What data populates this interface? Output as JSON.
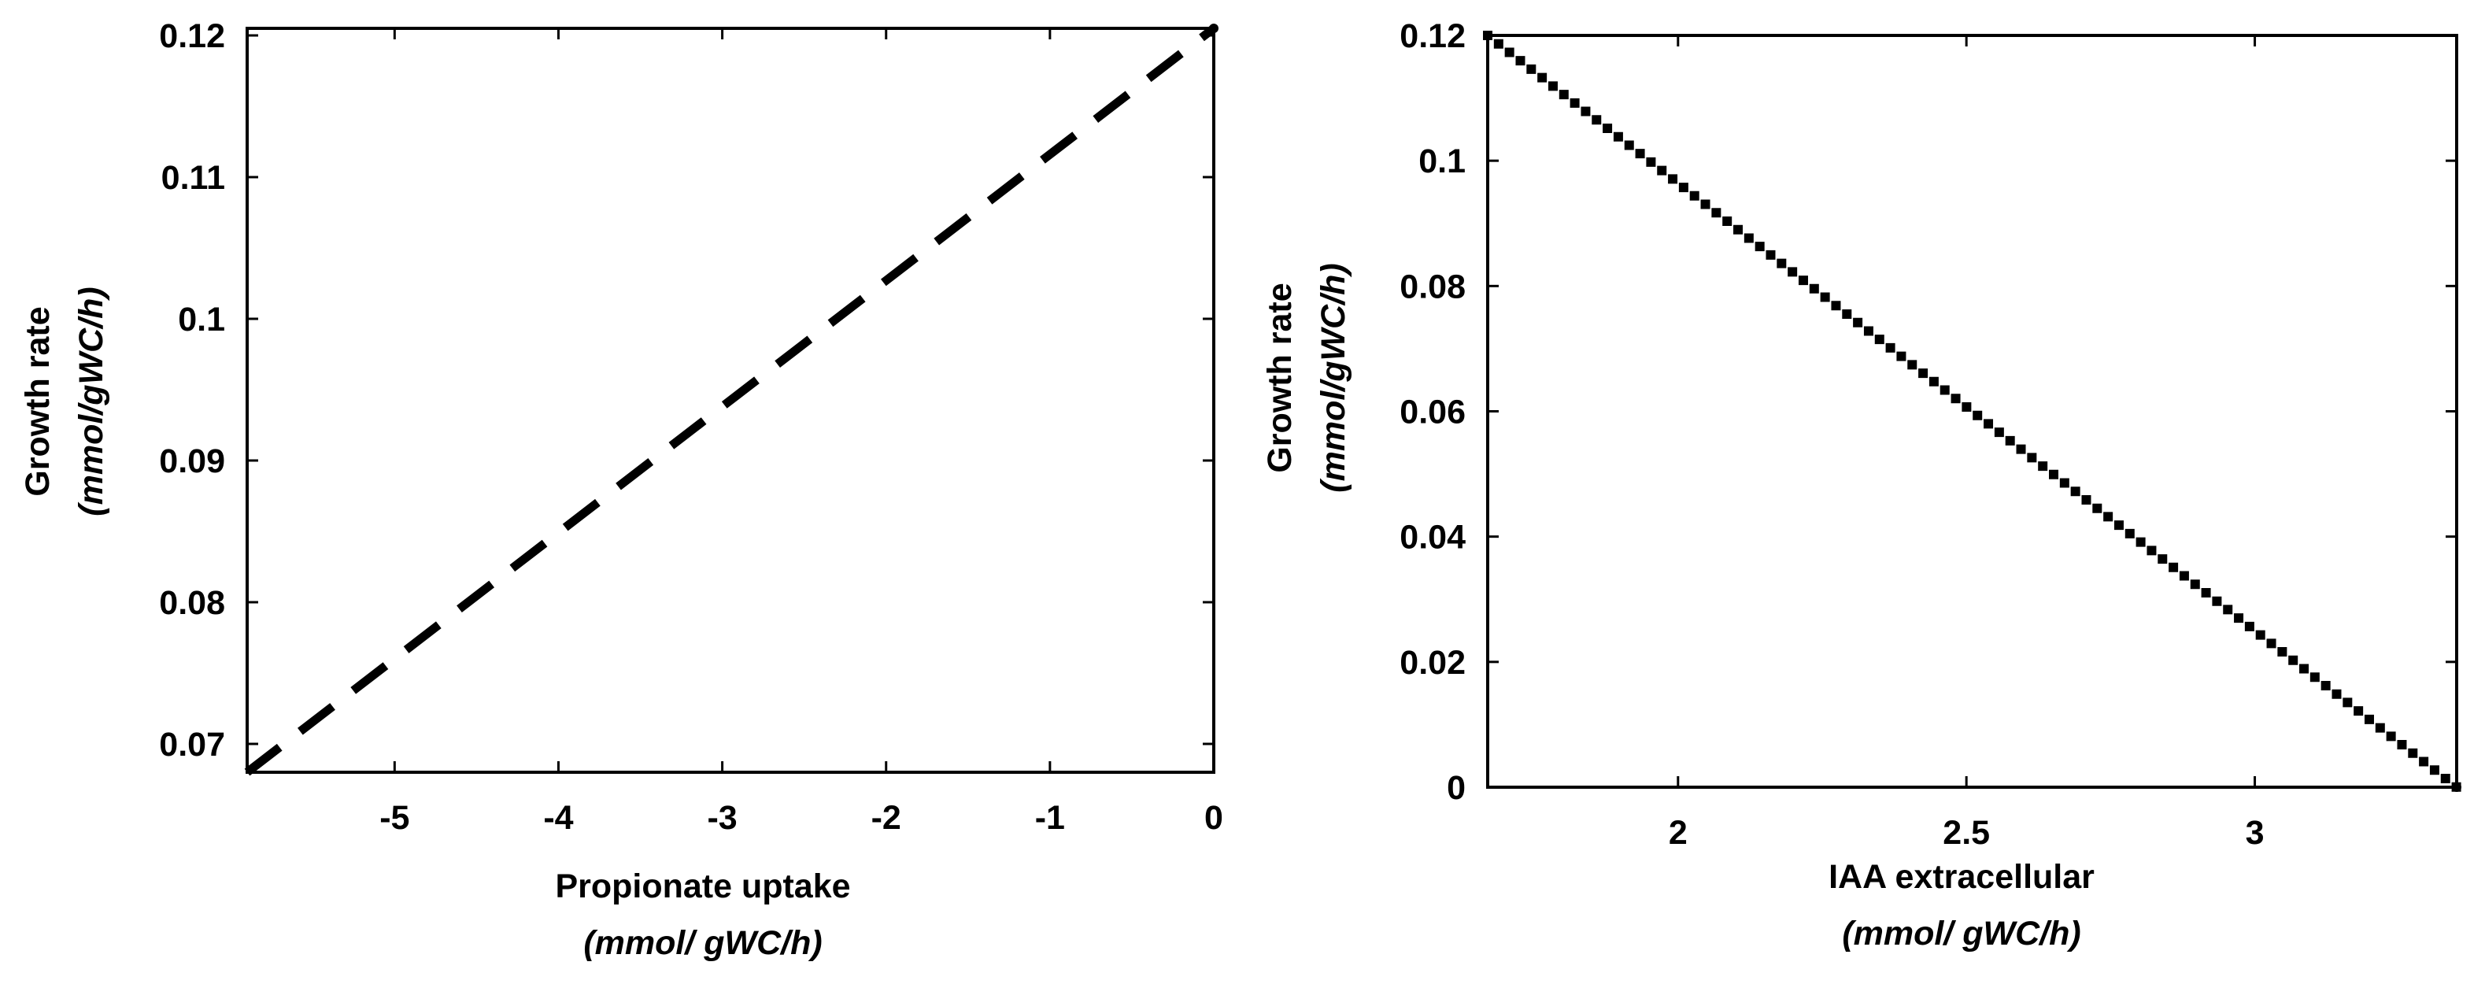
{
  "chart_data": [
    {
      "type": "line",
      "xlabel": "Propionate uptake",
      "xlabel_unit": "(mmol/ gWC/h)",
      "ylabel": "Growth rate",
      "ylabel_unit": "(mmol/gWC/h)",
      "xlim": [
        -5.9,
        0
      ],
      "ylim": [
        0.068,
        0.1205
      ],
      "x_ticks": [
        -5,
        -4,
        -3,
        -2,
        -1,
        0
      ],
      "x_tick_labels": [
        "-5",
        "-4",
        "-3",
        "-2",
        "-1",
        "0"
      ],
      "y_ticks": [
        0.07,
        0.08,
        0.09,
        0.1,
        0.11,
        0.12
      ],
      "y_tick_labels": [
        "0.07",
        "0.08",
        "0.09",
        "0.1",
        "0.11",
        "0.12"
      ],
      "grid": false,
      "line_style": "dashed",
      "color": "#000000",
      "series": [
        {
          "x": [
            -5.9,
            0
          ],
          "y": [
            0.068,
            0.1205
          ]
        }
      ]
    },
    {
      "type": "line",
      "xlabel": "IAA extracellular",
      "xlabel_unit": "(mmol/ gWC/h)",
      "ylabel": "Growth rate",
      "ylabel_unit": "(mmol/gWC/h)",
      "xlim": [
        1.67,
        3.35
      ],
      "ylim": [
        0,
        0.12
      ],
      "x_ticks": [
        2,
        2.5,
        3
      ],
      "x_tick_labels": [
        "2",
        "2.5",
        "3"
      ],
      "y_ticks": [
        0,
        0.02,
        0.04,
        0.06,
        0.08,
        0.1,
        0.12
      ],
      "y_tick_labels": [
        "0",
        "0.02",
        "0.04",
        "0.06",
        "0.08",
        "0.1",
        "0.12"
      ],
      "grid": false,
      "line_style": "dotted",
      "color": "#000000",
      "series": [
        {
          "x": [
            1.67,
            3.35
          ],
          "y": [
            0.12,
            0
          ]
        }
      ]
    }
  ]
}
